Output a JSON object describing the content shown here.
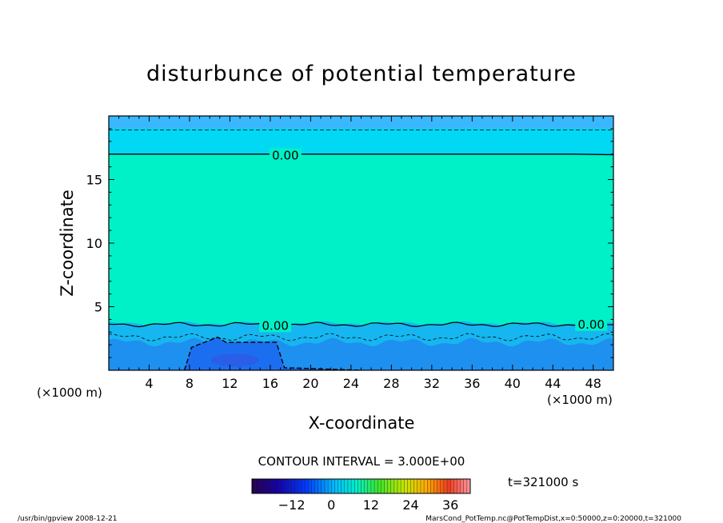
{
  "chart_data": {
    "type": "heatmap",
    "title": "disturbunce of potential temperature",
    "xlabel": "X-coordinate",
    "ylabel": "Z-coordinate",
    "x_unit": "(×1000 m)",
    "z_unit": "(×1000 m)",
    "xlim": [
      0,
      50
    ],
    "ylim": [
      0,
      20
    ],
    "x_ticks": [
      4,
      8,
      12,
      16,
      20,
      24,
      28,
      32,
      36,
      40,
      44,
      48
    ],
    "y_ticks": [
      5,
      10,
      15
    ],
    "contour_interval": "CONTOUR INTERVAL = 3.000E+00",
    "time_label": "t=321000 s",
    "contour_labels": [
      {
        "x": 17.5,
        "z": 16.9,
        "text": "0.00"
      },
      {
        "x": 16.5,
        "z": 3.5,
        "text": "0.00"
      },
      {
        "x": 47.8,
        "z": 3.6,
        "text": "0.00"
      }
    ],
    "colorbar": {
      "min": -24,
      "max": 42,
      "ticks": [
        -12,
        0,
        12,
        24,
        36
      ],
      "colormap": "rainbow"
    },
    "field_regions": [
      {
        "zmin": 19.0,
        "zmax": 20.0,
        "value": -0.5,
        "color": "#3ab8ff"
      },
      {
        "zmin": 17.0,
        "zmax": 19.0,
        "value": -0.2,
        "color": "#00d8f4"
      },
      {
        "zmin": 3.7,
        "zmax": 17.0,
        "value": 0.3,
        "color": "#00f0c8"
      },
      {
        "zmin": 2.2,
        "zmax": 3.7,
        "value": -0.8,
        "color": "#16b6f0"
      },
      {
        "zmin": 0.0,
        "zmax": 2.2,
        "value": -1.5,
        "color": "#1e90f0"
      }
    ]
  },
  "footer": {
    "left": "/usr/bin/gpview   2008-12-21",
    "right": "MarsCond_PotTemp.nc@PotTempDist,x=0:50000,z=0:20000,t=321000"
  }
}
